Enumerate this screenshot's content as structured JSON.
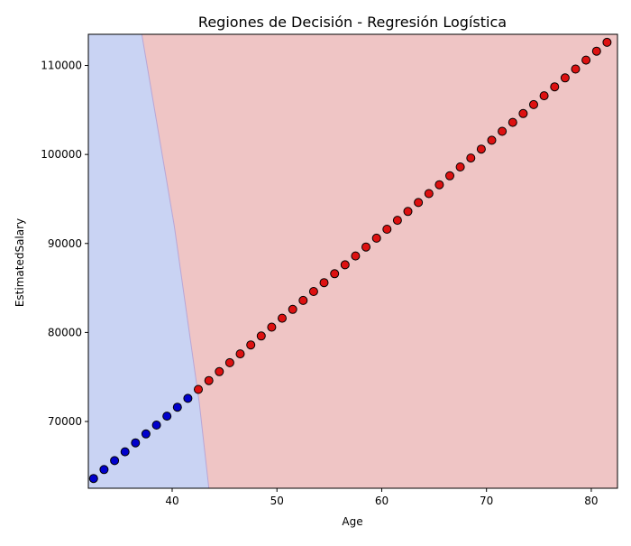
{
  "chart_data": {
    "type": "scatter",
    "title": "Regiones de Decisión - Regresión Logística",
    "xlabel": "Age",
    "ylabel": "EstimatedSalary",
    "xlim": [
      32,
      82.5
    ],
    "ylim": [
      62500,
      113500
    ],
    "xticks": [
      40,
      50,
      60,
      70,
      80
    ],
    "xtick_labels": [
      "40",
      "50",
      "60",
      "70",
      "80"
    ],
    "yticks": [
      70000,
      80000,
      90000,
      100000,
      110000
    ],
    "ytick_labels": [
      "70000",
      "80000",
      "90000",
      "100000",
      "110000"
    ],
    "grid": false,
    "regions": {
      "class_0_color": "#c9d3f3",
      "class_1_color": "#efc5c5",
      "boundary": [
        {
          "x": 43.5,
          "y": 62500
        },
        {
          "x": 42.6,
          "y": 72000
        },
        {
          "x": 40.2,
          "y": 92000
        },
        {
          "x": 37.1,
          "y": 113500
        }
      ]
    },
    "series": [
      {
        "class": 0,
        "color": "#0000cc",
        "x": [
          32.5,
          33.5,
          34.5,
          35.5,
          36.5,
          37.5,
          38.5,
          39.5,
          40.5,
          41.5
        ],
        "y": [
          63600,
          64600,
          65600,
          66600,
          67600,
          68600,
          69600,
          70600,
          71600,
          72600
        ]
      },
      {
        "class": 1,
        "color": "#dd1111",
        "x": [
          42.5,
          43.5,
          44.5,
          45.5,
          46.5,
          47.5,
          48.5,
          49.5,
          50.5,
          51.5,
          52.5,
          53.5,
          54.5,
          55.5,
          56.5,
          57.5,
          58.5,
          59.5,
          60.5,
          61.5,
          62.5,
          63.5,
          64.5,
          65.5,
          66.5,
          67.5,
          68.5,
          69.5,
          70.5,
          71.5,
          72.5,
          73.5,
          74.5,
          75.5,
          76.5,
          77.5,
          78.5,
          79.5,
          80.5,
          81.5
        ],
        "y": [
          73600,
          74600,
          75600,
          76600,
          77600,
          78600,
          79600,
          80600,
          81600,
          82600,
          83600,
          84600,
          85600,
          86600,
          87600,
          88600,
          89600,
          90600,
          91600,
          92600,
          93600,
          94600,
          95600,
          96600,
          97600,
          98600,
          99600,
          100600,
          101600,
          102600,
          103600,
          104600,
          105600,
          106600,
          107600,
          108600,
          109600,
          110600,
          111600,
          112600
        ]
      }
    ]
  }
}
